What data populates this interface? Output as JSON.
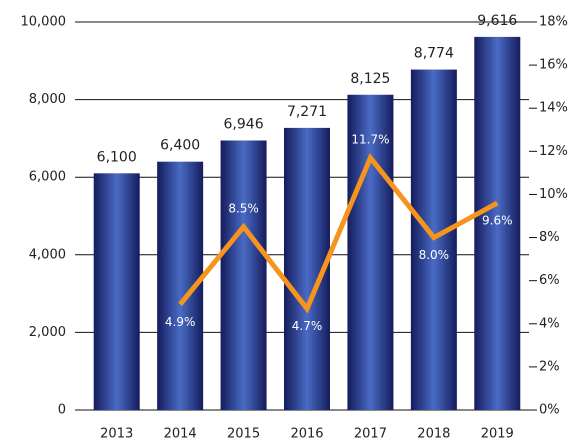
{
  "chart_data": {
    "type": "bar-line",
    "categories": [
      "2013",
      "2014",
      "2015",
      "2016",
      "2017",
      "2018",
      "2019"
    ],
    "series": [
      {
        "type": "bar",
        "color": "#1c2a78",
        "values": [
          6100,
          6400,
          6946,
          7271,
          8125,
          8774,
          9616
        ],
        "value_labels": [
          "6,100",
          "6,400",
          "6,946",
          "7,271",
          "8,125",
          "8,774",
          "9,616"
        ]
      },
      {
        "type": "line",
        "axis": "y2",
        "color": "#f7941d",
        "values": [
          null,
          4.9,
          8.5,
          4.7,
          11.7,
          8.0,
          9.6
        ],
        "value_labels": [
          null,
          "4.9%",
          "8.5%",
          "4.7%",
          "11.7%",
          "8.0%",
          "9.6%"
        ]
      }
    ],
    "ylim": [
      0,
      10000
    ],
    "yticks": [
      0,
      {
        "value": 2000,
        "label": "2,000"
      },
      {
        "value": 4000,
        "label": "4,000"
      },
      {
        "value": 6000,
        "label": "6,000"
      },
      {
        "value": 8000,
        "label": "8,000"
      },
      {
        "value": 10000,
        "label": "10,000"
      }
    ],
    "y2lim": [
      0,
      18
    ],
    "y2ticks": [
      {
        "value": 0,
        "label": "0%"
      },
      {
        "value": 2,
        "label": "2%"
      },
      {
        "value": 4,
        "label": "4%"
      },
      {
        "value": 6,
        "label": "6%"
      },
      {
        "value": 8,
        "label": "8%"
      },
      {
        "value": 10,
        "label": "10%"
      },
      {
        "value": 12,
        "label": "12%"
      },
      {
        "value": 14,
        "label": "14%"
      },
      {
        "value": 16,
        "label": "16%"
      },
      {
        "value": 18,
        "label": "18%"
      }
    ],
    "grid": true
  }
}
